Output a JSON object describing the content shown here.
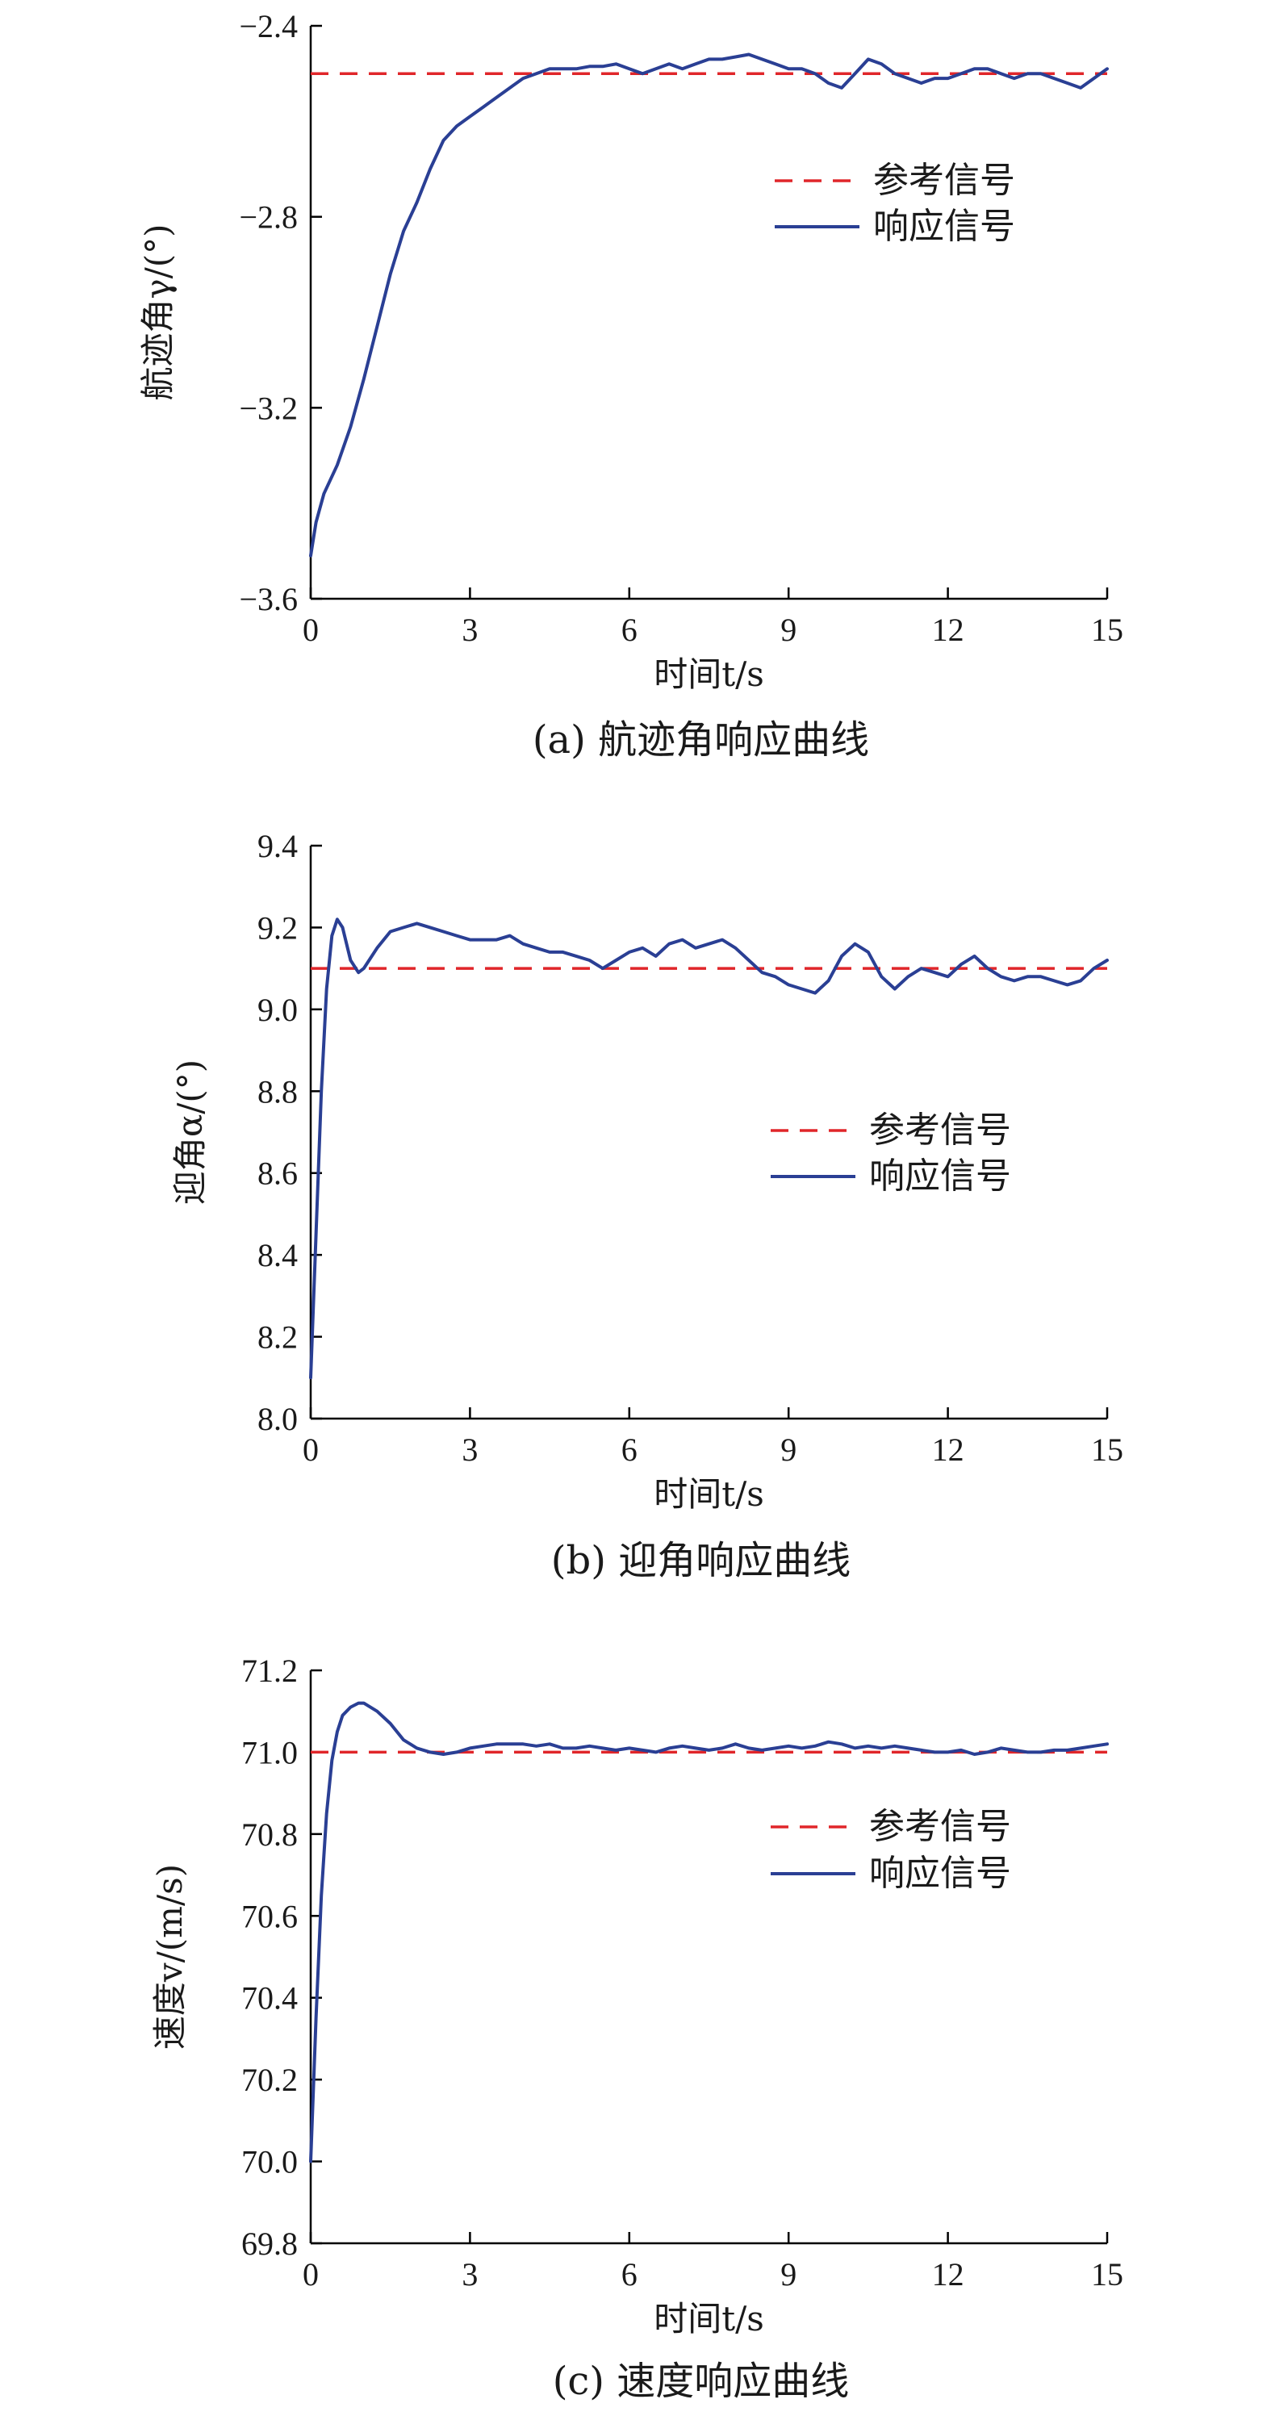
{
  "figure": {
    "colors": {
      "reference": "#e0262a",
      "response": "#2a3f94",
      "axis": "#000000"
    }
  },
  "chart_data": [
    {
      "type": "line",
      "caption": "(a) 航迹角响应曲线",
      "xlabel": "时间t/s",
      "ylabel": "航迹角γ/(°)",
      "xlim": [
        0,
        15
      ],
      "ylim": [
        -3.6,
        -2.4
      ],
      "xticks": [
        0,
        3,
        6,
        9,
        12,
        15
      ],
      "xtick_labels": [
        "0",
        "3",
        "6",
        "9",
        "12",
        "15"
      ],
      "yticks": [
        -3.6,
        -3.2,
        -2.8,
        -2.4
      ],
      "ytick_labels": [
        "−3.6",
        "−3.2",
        "−2.8",
        "−2.4"
      ],
      "grid": false,
      "legend": {
        "placement": "right-middle",
        "entries": [
          "参考信号",
          "响应信号"
        ]
      },
      "series": [
        {
          "name": "参考信号",
          "style": "dashed",
          "x": [
            0,
            15
          ],
          "y": [
            -2.5,
            -2.5
          ]
        },
        {
          "name": "响应信号",
          "style": "solid",
          "x": [
            0,
            0.1,
            0.25,
            0.5,
            0.75,
            1.0,
            1.25,
            1.5,
            1.75,
            2.0,
            2.25,
            2.5,
            2.75,
            3.0,
            3.25,
            3.5,
            3.75,
            4.0,
            4.25,
            4.5,
            4.75,
            5.0,
            5.25,
            5.5,
            5.75,
            6.0,
            6.25,
            6.5,
            6.75,
            7.0,
            7.25,
            7.5,
            7.75,
            8.0,
            8.25,
            8.5,
            8.75,
            9.0,
            9.25,
            9.5,
            9.75,
            10.0,
            10.25,
            10.5,
            10.75,
            11.0,
            11.25,
            11.5,
            11.75,
            12.0,
            12.25,
            12.5,
            12.75,
            13.0,
            13.25,
            13.5,
            13.75,
            14.0,
            14.25,
            14.5,
            14.75,
            15.0
          ],
          "y": [
            -3.51,
            -3.44,
            -3.38,
            -3.32,
            -3.24,
            -3.14,
            -3.03,
            -2.92,
            -2.83,
            -2.77,
            -2.7,
            -2.64,
            -2.61,
            -2.59,
            -2.57,
            -2.55,
            -2.53,
            -2.51,
            -2.5,
            -2.49,
            -2.49,
            -2.49,
            -2.485,
            -2.485,
            -2.48,
            -2.49,
            -2.5,
            -2.49,
            -2.48,
            -2.49,
            -2.48,
            -2.47,
            -2.47,
            -2.465,
            -2.46,
            -2.47,
            -2.48,
            -2.49,
            -2.49,
            -2.5,
            -2.52,
            -2.53,
            -2.5,
            -2.47,
            -2.48,
            -2.5,
            -2.51,
            -2.52,
            -2.51,
            -2.51,
            -2.5,
            -2.49,
            -2.49,
            -2.5,
            -2.51,
            -2.5,
            -2.5,
            -2.51,
            -2.52,
            -2.53,
            -2.51,
            -2.49
          ]
        }
      ]
    },
    {
      "type": "line",
      "caption": "(b) 迎角响应曲线",
      "xlabel": "时间t/s",
      "ylabel": "迎角α/(°)",
      "xlim": [
        0,
        15
      ],
      "ylim": [
        8.0,
        9.4
      ],
      "xticks": [
        0,
        3,
        6,
        9,
        12,
        15
      ],
      "xtick_labels": [
        "0",
        "3",
        "6",
        "9",
        "12",
        "15"
      ],
      "yticks": [
        8.0,
        8.2,
        8.4,
        8.6,
        8.8,
        9.0,
        9.2,
        9.4
      ],
      "ytick_labels": [
        "8.0",
        "8.2",
        "8.4",
        "8.6",
        "8.8",
        "9.0",
        "9.2",
        "9.4"
      ],
      "grid": false,
      "legend": {
        "placement": "right-middle",
        "entries": [
          "参考信号",
          "响应信号"
        ]
      },
      "series": [
        {
          "name": "参考信号",
          "style": "dashed",
          "x": [
            0,
            15
          ],
          "y": [
            9.1,
            9.1
          ]
        },
        {
          "name": "响应信号",
          "style": "solid",
          "x": [
            0,
            0.1,
            0.2,
            0.3,
            0.4,
            0.5,
            0.6,
            0.75,
            0.9,
            1.0,
            1.1,
            1.25,
            1.5,
            1.75,
            2.0,
            2.25,
            2.5,
            2.75,
            3.0,
            3.25,
            3.5,
            3.75,
            4.0,
            4.25,
            4.5,
            4.75,
            5.0,
            5.25,
            5.5,
            5.75,
            6.0,
            6.25,
            6.5,
            6.75,
            7.0,
            7.25,
            7.5,
            7.75,
            8.0,
            8.25,
            8.5,
            8.75,
            9.0,
            9.25,
            9.5,
            9.75,
            10.0,
            10.25,
            10.5,
            10.75,
            11.0,
            11.25,
            11.5,
            11.75,
            12.0,
            12.25,
            12.5,
            12.75,
            13.0,
            13.25,
            13.5,
            13.75,
            14.0,
            14.25,
            14.5,
            14.75,
            15.0
          ],
          "y": [
            8.1,
            8.45,
            8.8,
            9.05,
            9.18,
            9.22,
            9.2,
            9.12,
            9.09,
            9.1,
            9.12,
            9.15,
            9.19,
            9.2,
            9.21,
            9.2,
            9.19,
            9.18,
            9.17,
            9.17,
            9.17,
            9.18,
            9.16,
            9.15,
            9.14,
            9.14,
            9.13,
            9.12,
            9.1,
            9.12,
            9.14,
            9.15,
            9.13,
            9.16,
            9.17,
            9.15,
            9.16,
            9.17,
            9.15,
            9.12,
            9.09,
            9.08,
            9.06,
            9.05,
            9.04,
            9.07,
            9.13,
            9.16,
            9.14,
            9.08,
            9.05,
            9.08,
            9.1,
            9.09,
            9.08,
            9.11,
            9.13,
            9.1,
            9.08,
            9.07,
            9.08,
            9.08,
            9.07,
            9.06,
            9.07,
            9.1,
            9.12
          ]
        }
      ]
    },
    {
      "type": "line",
      "caption": "(c) 速度响应曲线",
      "xlabel": "时间t/s",
      "ylabel": "速度v/(m/s)",
      "xlim": [
        0,
        15
      ],
      "ylim": [
        69.8,
        71.2
      ],
      "xticks": [
        0,
        3,
        6,
        9,
        12,
        15
      ],
      "xtick_labels": [
        "0",
        "3",
        "6",
        "9",
        "12",
        "15"
      ],
      "yticks": [
        69.8,
        70.0,
        70.2,
        70.4,
        70.6,
        70.8,
        71.0,
        71.2
      ],
      "ytick_labels": [
        "69.8",
        "70.0",
        "70.2",
        "70.4",
        "70.6",
        "70.8",
        "71.0",
        "71.2"
      ],
      "grid": false,
      "legend": {
        "placement": "right-middle",
        "entries": [
          "参考信号",
          "响应信号"
        ]
      },
      "series": [
        {
          "name": "参考信号",
          "style": "dashed",
          "x": [
            0,
            15
          ],
          "y": [
            71.0,
            71.0
          ]
        },
        {
          "name": "响应信号",
          "style": "solid",
          "x": [
            0,
            0.1,
            0.2,
            0.3,
            0.4,
            0.5,
            0.6,
            0.75,
            0.9,
            1.0,
            1.25,
            1.5,
            1.75,
            2.0,
            2.25,
            2.5,
            2.75,
            3.0,
            3.25,
            3.5,
            3.75,
            4.0,
            4.25,
            4.5,
            4.75,
            5.0,
            5.25,
            5.5,
            5.75,
            6.0,
            6.25,
            6.5,
            6.75,
            7.0,
            7.25,
            7.5,
            7.75,
            8.0,
            8.25,
            8.5,
            8.75,
            9.0,
            9.25,
            9.5,
            9.75,
            10.0,
            10.25,
            10.5,
            10.75,
            11.0,
            11.25,
            11.5,
            11.75,
            12.0,
            12.25,
            12.5,
            12.75,
            13.0,
            13.25,
            13.5,
            13.75,
            14.0,
            14.25,
            14.5,
            14.75,
            15.0
          ],
          "y": [
            70.0,
            70.35,
            70.65,
            70.85,
            70.98,
            71.05,
            71.09,
            71.11,
            71.12,
            71.12,
            71.1,
            71.07,
            71.03,
            71.01,
            71.0,
            70.995,
            71.0,
            71.01,
            71.015,
            71.02,
            71.02,
            71.02,
            71.015,
            71.02,
            71.01,
            71.01,
            71.015,
            71.01,
            71.005,
            71.01,
            71.005,
            71.0,
            71.01,
            71.015,
            71.01,
            71.005,
            71.01,
            71.02,
            71.01,
            71.005,
            71.01,
            71.015,
            71.01,
            71.015,
            71.025,
            71.02,
            71.01,
            71.015,
            71.01,
            71.015,
            71.01,
            71.005,
            71.0,
            71.0,
            71.005,
            70.995,
            71.0,
            71.01,
            71.005,
            71.0,
            71.0,
            71.005,
            71.005,
            71.01,
            71.015,
            71.02
          ]
        }
      ]
    }
  ]
}
